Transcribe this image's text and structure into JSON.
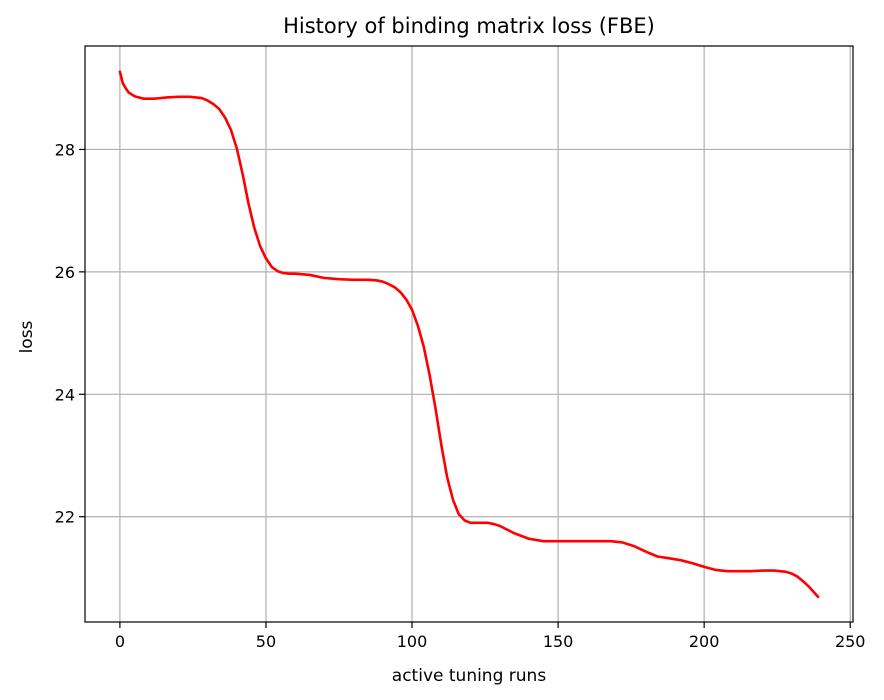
{
  "chart_data": {
    "type": "line",
    "title": "History of binding matrix loss (FBE)",
    "xlabel": "active tuning runs",
    "ylabel": "loss",
    "xlim": [
      -11.95,
      250.95
    ],
    "ylim": [
      20.28,
      29.69
    ],
    "xticks": [
      0,
      50,
      100,
      150,
      200,
      250
    ],
    "yticks": [
      22,
      24,
      26,
      28
    ],
    "grid": true,
    "line_color": "#ff0000",
    "series": [
      {
        "x": [
          0,
          1,
          2,
          3,
          5,
          8,
          12,
          16,
          20,
          24,
          28,
          30,
          32,
          34,
          36,
          38,
          40,
          42,
          44,
          46,
          48,
          50,
          52,
          54,
          56,
          58,
          60,
          65,
          70,
          75,
          80,
          85,
          88,
          90,
          92,
          94,
          96,
          98,
          100,
          102,
          104,
          106,
          108,
          110,
          112,
          114,
          116,
          118,
          120,
          122,
          124,
          126,
          128,
          130,
          135,
          140,
          145,
          150,
          155,
          160,
          165,
          168,
          172,
          176,
          180,
          184,
          188,
          192,
          196,
          200,
          204,
          208,
          212,
          216,
          220,
          224,
          228,
          230,
          232,
          234,
          236,
          239
        ],
        "y": [
          29.27,
          29.08,
          29.0,
          28.93,
          28.87,
          28.83,
          28.83,
          28.85,
          28.86,
          28.86,
          28.84,
          28.8,
          28.74,
          28.66,
          28.52,
          28.32,
          28.02,
          27.6,
          27.12,
          26.72,
          26.42,
          26.22,
          26.08,
          26.01,
          25.98,
          25.97,
          25.97,
          25.95,
          25.9,
          25.88,
          25.87,
          25.87,
          25.86,
          25.84,
          25.8,
          25.75,
          25.67,
          25.55,
          25.38,
          25.12,
          24.78,
          24.32,
          23.78,
          23.18,
          22.65,
          22.28,
          22.04,
          21.94,
          21.9,
          21.9,
          21.9,
          21.9,
          21.88,
          21.85,
          21.73,
          21.64,
          21.6,
          21.6,
          21.6,
          21.6,
          21.6,
          21.6,
          21.58,
          21.52,
          21.43,
          21.35,
          21.32,
          21.29,
          21.24,
          21.18,
          21.13,
          21.11,
          21.11,
          21.11,
          21.12,
          21.12,
          21.1,
          21.07,
          21.02,
          20.94,
          20.85,
          20.69
        ]
      }
    ]
  }
}
